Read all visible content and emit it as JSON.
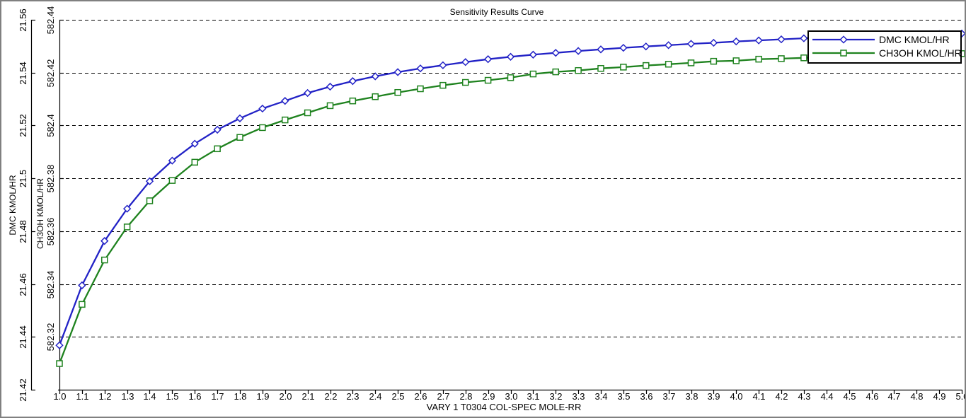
{
  "figure": {
    "title": "Sensitivity Results Curve",
    "background": "#ffffff",
    "border_color": "#808080"
  },
  "chart_data": {
    "type": "line",
    "title": "Sensitivity Results Curve",
    "xlabel": "VARY  1 T0304 COL-SPEC MOLE-RR",
    "grid": "horizontal-dashed-black",
    "legend_position": "top-right-inside",
    "xlim": [
      1.0,
      5.0
    ],
    "x": [
      1.0,
      1.1,
      1.2,
      1.3,
      1.4,
      1.5,
      1.6,
      1.7,
      1.8,
      1.9,
      2.0,
      2.1,
      2.2,
      2.3,
      2.4,
      2.5,
      2.6,
      2.7,
      2.8,
      2.9,
      3.0,
      3.1,
      3.2,
      3.3,
      3.4,
      3.5,
      3.6,
      3.7,
      3.8,
      3.9,
      4.0,
      4.1,
      4.2,
      4.3,
      4.4,
      4.5,
      4.6,
      4.7,
      4.8,
      4.9,
      5.0
    ],
    "x_tick_labels": [
      "1.0",
      "1.1",
      "1.2",
      "1.3",
      "1.4",
      "1.5",
      "1.6",
      "1.7",
      "1.8",
      "1.9",
      "2.0",
      "2.1",
      "2.2",
      "2.3",
      "2.4",
      "2.5",
      "2.6",
      "2.7",
      "2.8",
      "2.9",
      "3.0",
      "3.1",
      "3.2",
      "3.3",
      "3.4",
      "3.5",
      "3.6",
      "3.7",
      "3.8",
      "3.9",
      "4.0",
      "4.1",
      "4.2",
      "4.3",
      "4.4",
      "4.5",
      "4.6",
      "4.7",
      "4.8",
      "4.9",
      "5.0"
    ],
    "axes": [
      {
        "id": "dmc",
        "label": "DMC KMOL/HR",
        "lim": [
          21.42,
          21.56
        ],
        "tick_values": [
          21.42,
          21.44,
          21.46,
          21.48,
          21.5,
          21.52,
          21.54,
          21.56
        ],
        "tick_labels": [
          "21.42",
          "21.44",
          "21.46",
          "21.48",
          "21.5",
          "21.52",
          "21.54",
          "21.56"
        ]
      },
      {
        "id": "ch3oh",
        "label": "CH3OH KMOL/HR",
        "lim": [
          582.3,
          582.44
        ],
        "tick_values": [
          582.32,
          582.34,
          582.36,
          582.38,
          582.4,
          582.42,
          582.44
        ],
        "tick_labels": [
          "582.32",
          "582.34",
          "582.36",
          "582.38",
          "582.4",
          "582.42",
          "582.44"
        ]
      }
    ],
    "series": [
      {
        "name": "DMC KMOL/HR",
        "axis": "dmc",
        "color": "#2222c6",
        "marker": "diamond",
        "values": [
          21.4368,
          21.4595,
          21.4763,
          21.4885,
          21.4989,
          21.5067,
          21.5131,
          21.5184,
          21.5227,
          21.5264,
          21.5293,
          21.5323,
          21.5347,
          21.5368,
          21.5386,
          21.5402,
          21.5416,
          21.5428,
          21.544,
          21.5451,
          21.546,
          21.5468,
          21.5475,
          21.5482,
          21.5488,
          21.5494,
          21.5499,
          21.5504,
          21.5509,
          21.5513,
          21.5518,
          21.5522,
          21.5526,
          21.553,
          21.5533,
          21.5536,
          21.5539,
          21.5542,
          21.5544,
          21.5546,
          21.5548
        ]
      },
      {
        "name": "CH3OH KMOL/HR",
        "axis": "ch3oh",
        "color": "#1e821e",
        "marker": "square",
        "values": [
          582.3099,
          582.3323,
          582.3491,
          582.3616,
          582.3715,
          582.3792,
          582.3861,
          582.3912,
          582.3955,
          582.3992,
          582.4021,
          582.4048,
          582.4075,
          582.4093,
          582.4109,
          582.4125,
          582.4139,
          582.4152,
          582.4163,
          582.4171,
          582.4181,
          582.4195,
          582.4203,
          582.4208,
          582.4216,
          582.4221,
          582.4227,
          582.4232,
          582.4237,
          582.4243,
          582.4245,
          582.4251,
          582.4253,
          582.4256,
          582.4259,
          582.4261,
          582.4263,
          582.4266,
          582.4268,
          582.427,
          582.4272
        ]
      }
    ],
    "marker_fill": "#ffffff",
    "grid_color": "#000000",
    "axis_color": "#000000"
  }
}
